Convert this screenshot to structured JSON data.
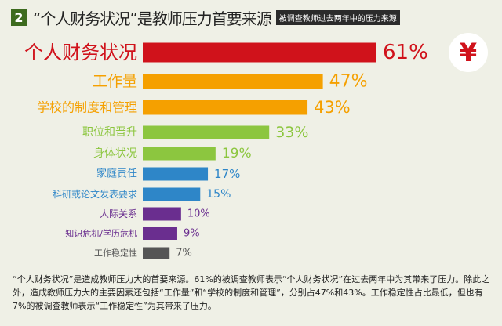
{
  "header": {
    "number": "2",
    "title": "“个人财务状况”是教师压力首要来源",
    "subtitle": "被调查教师过去两年中的压力来源"
  },
  "icon": {
    "name": "yen-icon",
    "glyph": "¥"
  },
  "chart_data": {
    "type": "bar",
    "orientation": "horizontal",
    "xlim": [
      0,
      100
    ],
    "grid": false,
    "categories": [
      "个人财务状况",
      "工作量",
      "学校的制度和管理",
      "职位和晋升",
      "身体状况",
      "家庭责任",
      "科研或论文发表要求",
      "人际关系",
      "知识危机/学历危机",
      "工作稳定性"
    ],
    "values": [
      61,
      47,
      43,
      33,
      19,
      17,
      15,
      10,
      9,
      7
    ],
    "value_labels": [
      "61%",
      "47%",
      "43%",
      "33%",
      "19%",
      "17%",
      "15%",
      "10%",
      "9%",
      "7%"
    ],
    "colors": [
      "#d0121b",
      "#f5a000",
      "#f5a000",
      "#8cc63f",
      "#8cc63f",
      "#2e86c8",
      "#2e86c8",
      "#6a2e8f",
      "#6a2e8f",
      "#555555"
    ]
  },
  "description": "“个人财务状况”是造成教师压力大的首要来源。61%的被调查教师表示“个人财务状况”在过去两年中为其带来了压力。除此之外，造成教师压力大的主要因素还包括“工作量”和“学校的制度和管理”，分别占47%和43%。工作稳定性占比最低，但也有7%的被调查教师表示“工作稳定性”为其带来了压力。"
}
